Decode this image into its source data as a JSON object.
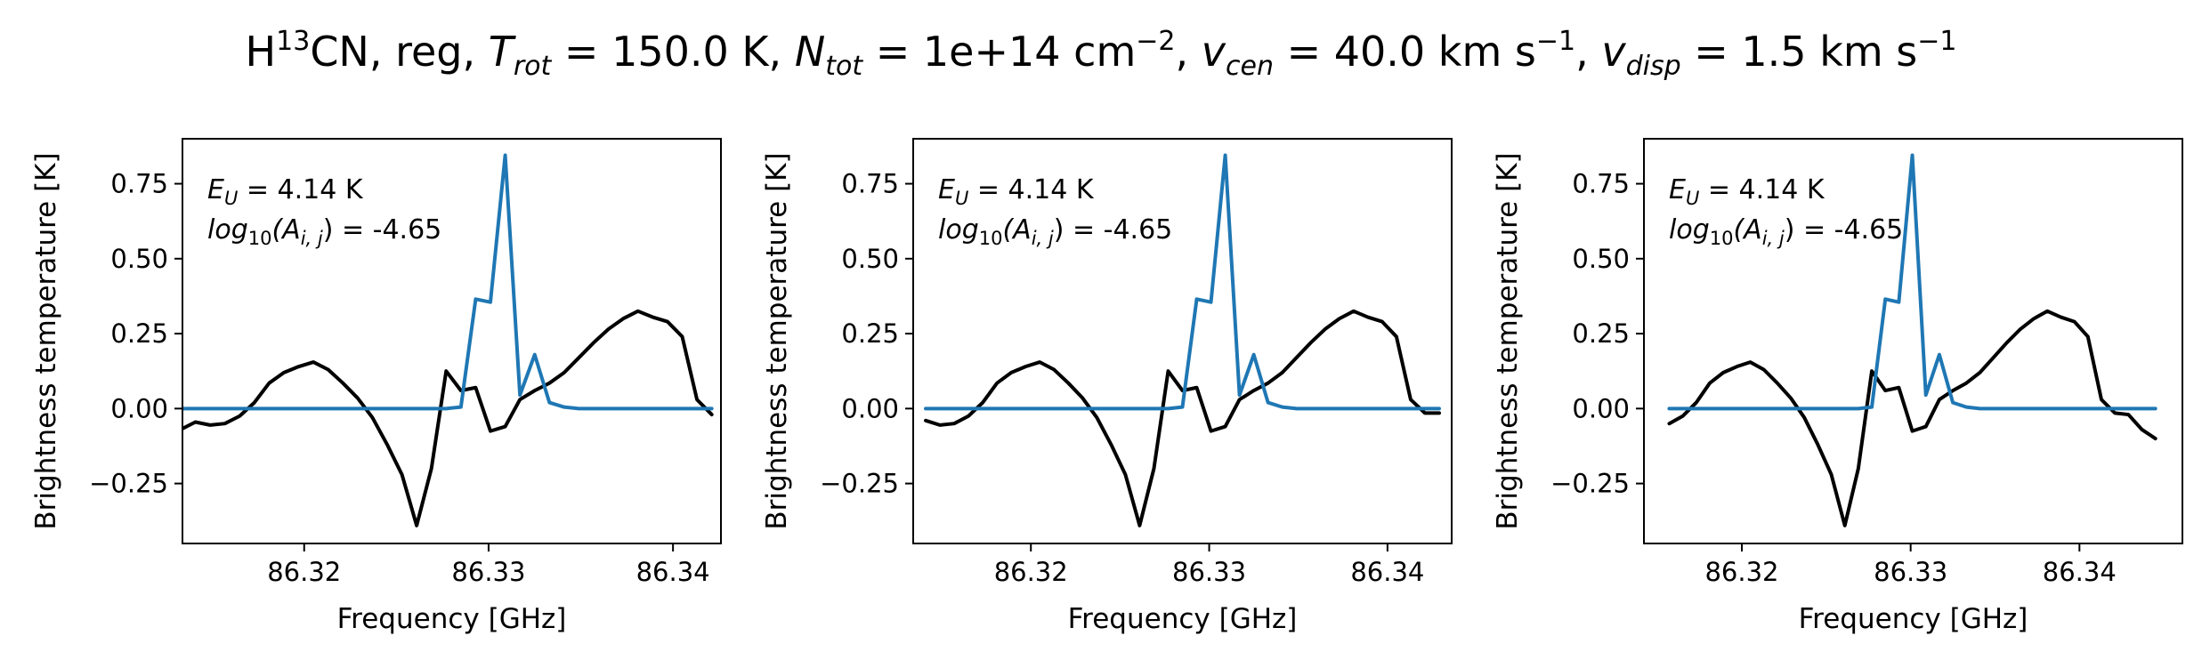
{
  "figure": {
    "title_parts": {
      "species_pre": "H",
      "species_sup": "13",
      "species_post": "CN, reg, ",
      "t_sym": "T",
      "t_sub": "rot",
      "t_val": " =  150.0 K, ",
      "n_sym": "N",
      "n_sub": "tot",
      "n_val": " =  1e+14 cm",
      "n_sup": "−2",
      "sep1": ", ",
      "vc_sym": "v",
      "vc_sub": "cen",
      "vc_val": " =  40.0 km s",
      "vc_sup": "−1",
      "sep2": ", ",
      "vd_sym": "v",
      "vd_sub": "disp",
      "vd_val": " =  1.5 km s",
      "vd_sup": "−1"
    }
  },
  "colors": {
    "observed": "#000000",
    "model": "#1f77b4"
  },
  "chart_data": [
    {
      "type": "line",
      "xlabel": "Frequency [GHz]",
      "ylabel": "Brightness temperature [K]",
      "xlim": [
        86.3134,
        86.3426
      ],
      "ylim": [
        -0.45,
        0.9
      ],
      "xticks": [
        86.32,
        86.33,
        86.34
      ],
      "xtick_labels": [
        "86.32",
        "86.33",
        "86.34"
      ],
      "yticks": [
        0.75,
        0.5,
        0.25,
        0.0,
        -0.25
      ],
      "ytick_labels": [
        "0.75",
        "0.50",
        "0.25",
        "0.00",
        "−0.25"
      ],
      "annotation": {
        "eu_sym": "E",
        "eu_sub": "U",
        "eu_val": " = 4.14 K",
        "a_pre": "log",
        "a_sub1": "10",
        "a_mid": "(A",
        "a_sub2": "i, j",
        "a_val": ") = -4.65"
      },
      "series": [
        {
          "role": "observed",
          "x": [
            86.3133,
            86.3141,
            86.3149,
            86.3157,
            86.3165,
            86.3173,
            86.3181,
            86.3189,
            86.3197,
            86.3205,
            86.3213,
            86.3221,
            86.3229,
            86.3237,
            86.3245,
            86.3253,
            86.3261,
            86.3269,
            86.3277,
            86.3285,
            86.3293,
            86.3301,
            86.3309,
            86.3317,
            86.3325,
            86.3333,
            86.3341,
            86.3349,
            86.3357,
            86.3365,
            86.3373,
            86.3381,
            86.3389,
            86.3397,
            86.3405,
            86.3413,
            86.3421
          ],
          "y": [
            -0.07,
            -0.045,
            -0.055,
            -0.05,
            -0.025,
            0.02,
            0.085,
            0.12,
            0.14,
            0.155,
            0.13,
            0.085,
            0.035,
            -0.03,
            -0.12,
            -0.22,
            -0.39,
            -0.2,
            0.125,
            0.06,
            0.07,
            -0.075,
            -0.06,
            0.03,
            0.06,
            0.085,
            0.12,
            0.17,
            0.22,
            0.265,
            0.3,
            0.325,
            0.305,
            0.29,
            0.24,
            0.03,
            -0.02
          ]
        },
        {
          "role": "model",
          "x": [
            86.3133,
            86.3141,
            86.3149,
            86.3157,
            86.3165,
            86.3173,
            86.3181,
            86.3189,
            86.3197,
            86.3205,
            86.3213,
            86.3221,
            86.3229,
            86.3237,
            86.3245,
            86.3253,
            86.3261,
            86.3269,
            86.3277,
            86.3285,
            86.3293,
            86.3301,
            86.3309,
            86.3317,
            86.3325,
            86.3333,
            86.3341,
            86.3349,
            86.3357,
            86.3365,
            86.3373,
            86.3381,
            86.3389,
            86.3397,
            86.3405,
            86.3413,
            86.3421
          ],
          "y": [
            0,
            0,
            0,
            0,
            0,
            0,
            0,
            0,
            0,
            0,
            0,
            0,
            0,
            0,
            0,
            0,
            0,
            0,
            0,
            0.005,
            0.365,
            0.355,
            0.845,
            0.045,
            0.18,
            0.02,
            0.005,
            0,
            0,
            0,
            0,
            0,
            0,
            0,
            0,
            0,
            0
          ]
        }
      ]
    },
    {
      "type": "line",
      "xlabel": "Frequency [GHz]",
      "ylabel": "Brightness temperature [K]",
      "xlim": [
        86.3134,
        86.3436
      ],
      "ylim": [
        -0.45,
        0.9
      ],
      "xticks": [
        86.32,
        86.33,
        86.34
      ],
      "xtick_labels": [
        "86.32",
        "86.33",
        "86.34"
      ],
      "yticks": [
        0.75,
        0.5,
        0.25,
        0.0,
        -0.25
      ],
      "ytick_labels": [
        "0.75",
        "0.50",
        "0.25",
        "0.00",
        "−0.25"
      ],
      "annotation": {
        "eu_sym": "E",
        "eu_sub": "U",
        "eu_val": " = 4.14 K",
        "a_pre": "log",
        "a_sub1": "10",
        "a_mid": "(A",
        "a_sub2": "i, j",
        "a_val": ") = -4.65"
      },
      "series": [
        {
          "role": "observed",
          "x": [
            86.3141,
            86.3149,
            86.3157,
            86.3165,
            86.3173,
            86.3181,
            86.3189,
            86.3197,
            86.3205,
            86.3213,
            86.3221,
            86.3229,
            86.3237,
            86.3245,
            86.3253,
            86.3261,
            86.3269,
            86.3277,
            86.3285,
            86.3293,
            86.3301,
            86.3309,
            86.3317,
            86.3325,
            86.3333,
            86.3341,
            86.3349,
            86.3357,
            86.3365,
            86.3373,
            86.3381,
            86.3389,
            86.3397,
            86.3405,
            86.3413,
            86.3421,
            86.3429
          ],
          "y": [
            -0.04,
            -0.055,
            -0.05,
            -0.025,
            0.02,
            0.085,
            0.12,
            0.14,
            0.155,
            0.13,
            0.085,
            0.035,
            -0.03,
            -0.12,
            -0.22,
            -0.39,
            -0.2,
            0.125,
            0.06,
            0.07,
            -0.075,
            -0.06,
            0.03,
            0.06,
            0.085,
            0.12,
            0.17,
            0.22,
            0.265,
            0.3,
            0.325,
            0.305,
            0.29,
            0.24,
            0.03,
            -0.015,
            -0.015
          ]
        },
        {
          "role": "model",
          "x": [
            86.3141,
            86.3149,
            86.3157,
            86.3165,
            86.3173,
            86.3181,
            86.3189,
            86.3197,
            86.3205,
            86.3213,
            86.3221,
            86.3229,
            86.3237,
            86.3245,
            86.3253,
            86.3261,
            86.3269,
            86.3277,
            86.3285,
            86.3293,
            86.3301,
            86.3309,
            86.3317,
            86.3325,
            86.3333,
            86.3341,
            86.3349,
            86.3357,
            86.3365,
            86.3373,
            86.3381,
            86.3389,
            86.3397,
            86.3405,
            86.3413,
            86.3421,
            86.3429
          ],
          "y": [
            0,
            0,
            0,
            0,
            0,
            0,
            0,
            0,
            0,
            0,
            0,
            0,
            0,
            0,
            0,
            0,
            0,
            0,
            0.005,
            0.365,
            0.355,
            0.845,
            0.045,
            0.18,
            0.02,
            0.005,
            0,
            0,
            0,
            0,
            0,
            0,
            0,
            0,
            0,
            0,
            0
          ]
        }
      ]
    },
    {
      "type": "line",
      "xlabel": "Frequency [GHz]",
      "ylabel": "Brightness temperature [K]",
      "xlim": [
        86.3142,
        86.3461
      ],
      "ylim": [
        -0.45,
        0.9
      ],
      "xticks": [
        86.32,
        86.33,
        86.34
      ],
      "xtick_labels": [
        "86.32",
        "86.33",
        "86.34"
      ],
      "yticks": [
        0.75,
        0.5,
        0.25,
        0.0,
        -0.25
      ],
      "ytick_labels": [
        "0.75",
        "0.50",
        "0.25",
        "0.00",
        "−0.25"
      ],
      "annotation": {
        "eu_sym": "E",
        "eu_sub": "U",
        "eu_val": " = 4.14 K",
        "a_pre": "log",
        "a_sub1": "10",
        "a_mid": "(A",
        "a_sub2": "i, j",
        "a_val": ") = -4.65"
      },
      "series": [
        {
          "role": "observed",
          "x": [
            86.3157,
            86.3165,
            86.3173,
            86.3181,
            86.3189,
            86.3197,
            86.3205,
            86.3213,
            86.3221,
            86.3229,
            86.3237,
            86.3245,
            86.3253,
            86.3261,
            86.3269,
            86.3277,
            86.3285,
            86.3293,
            86.3301,
            86.3309,
            86.3317,
            86.3325,
            86.3333,
            86.3341,
            86.3349,
            86.3357,
            86.3365,
            86.3373,
            86.3381,
            86.3389,
            86.3397,
            86.3405,
            86.3413,
            86.3421,
            86.3429,
            86.3437,
            86.3445
          ],
          "y": [
            -0.05,
            -0.025,
            0.02,
            0.085,
            0.12,
            0.14,
            0.155,
            0.13,
            0.085,
            0.035,
            -0.03,
            -0.12,
            -0.22,
            -0.39,
            -0.2,
            0.125,
            0.06,
            0.07,
            -0.075,
            -0.06,
            0.03,
            0.06,
            0.085,
            0.12,
            0.17,
            0.22,
            0.265,
            0.3,
            0.325,
            0.305,
            0.29,
            0.24,
            0.03,
            -0.015,
            -0.02,
            -0.07,
            -0.1
          ]
        },
        {
          "role": "model",
          "x": [
            86.3157,
            86.3165,
            86.3173,
            86.3181,
            86.3189,
            86.3197,
            86.3205,
            86.3213,
            86.3221,
            86.3229,
            86.3237,
            86.3245,
            86.3253,
            86.3261,
            86.3269,
            86.3277,
            86.3285,
            86.3293,
            86.3301,
            86.3309,
            86.3317,
            86.3325,
            86.3333,
            86.3341,
            86.3349,
            86.3357,
            86.3365,
            86.3373,
            86.3381,
            86.3389,
            86.3397,
            86.3405,
            86.3413,
            86.3421,
            86.3429,
            86.3437,
            86.3445
          ],
          "y": [
            0,
            0,
            0,
            0,
            0,
            0,
            0,
            0,
            0,
            0,
            0,
            0,
            0,
            0,
            0,
            0.005,
            0.365,
            0.355,
            0.845,
            0.045,
            0.18,
            0.02,
            0.005,
            0,
            0,
            0,
            0,
            0,
            0,
            0,
            0,
            0,
            0,
            0,
            0,
            0,
            0
          ]
        }
      ]
    }
  ]
}
